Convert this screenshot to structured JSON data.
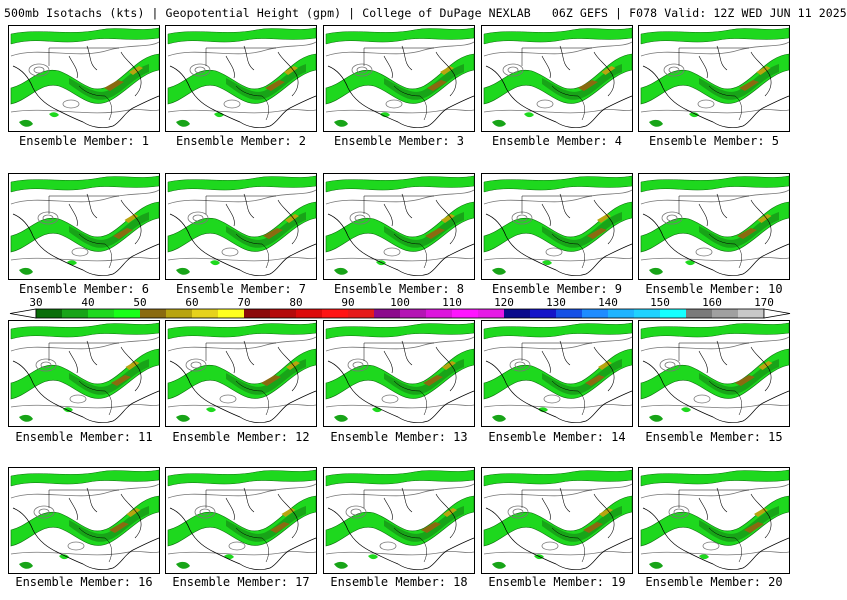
{
  "header": {
    "title": "500mb Isotachs (kts) | Geopotential Height (gpm) | College of DuPage NEXLAB   06Z GEFS | F078 Valid: 12Z WED JUN 11 2025"
  },
  "colorbar": {
    "labels": [
      "30",
      "40",
      "50",
      "60",
      "70",
      "80",
      "90",
      "100",
      "110",
      "120",
      "130",
      "140",
      "150",
      "160",
      "170"
    ],
    "colors": [
      "#0a6e0a",
      "#18a418",
      "#1ed81e",
      "#18ff18",
      "#8a6a10",
      "#b8a410",
      "#e6d21c",
      "#ffff1e",
      "#8c0a0a",
      "#b40a0a",
      "#dc0a0a",
      "#ff1414",
      "#e61a1a",
      "#8c0a8c",
      "#b414b4",
      "#dc14dc",
      "#ff14ff",
      "#e61ae6",
      "#0a0a8c",
      "#1414c8",
      "#1450e6",
      "#1e8cff",
      "#1eb4ff",
      "#1ed2ff",
      "#14ffff",
      "#7a7a7a",
      "#a0a0a0",
      "#c8c8c8"
    ]
  },
  "members": [
    {
      "caption": "Ensemble Member: 1"
    },
    {
      "caption": "Ensemble Member: 2"
    },
    {
      "caption": "Ensemble Member: 3"
    },
    {
      "caption": "Ensemble Member: 4"
    },
    {
      "caption": "Ensemble Member: 5"
    },
    {
      "caption": "Ensemble Member: 6"
    },
    {
      "caption": "Ensemble Member: 7"
    },
    {
      "caption": "Ensemble Member: 8"
    },
    {
      "caption": "Ensemble Member: 9"
    },
    {
      "caption": "Ensemble Member: 10"
    },
    {
      "caption": "Ensemble Member: 11"
    },
    {
      "caption": "Ensemble Member: 12"
    },
    {
      "caption": "Ensemble Member: 13"
    },
    {
      "caption": "Ensemble Member: 14"
    },
    {
      "caption": "Ensemble Member: 15"
    },
    {
      "caption": "Ensemble Member: 16"
    },
    {
      "caption": "Ensemble Member: 17"
    },
    {
      "caption": "Ensemble Member: 18"
    },
    {
      "caption": "Ensemble Member: 19"
    },
    {
      "caption": "Ensemble Member: 20"
    }
  ]
}
